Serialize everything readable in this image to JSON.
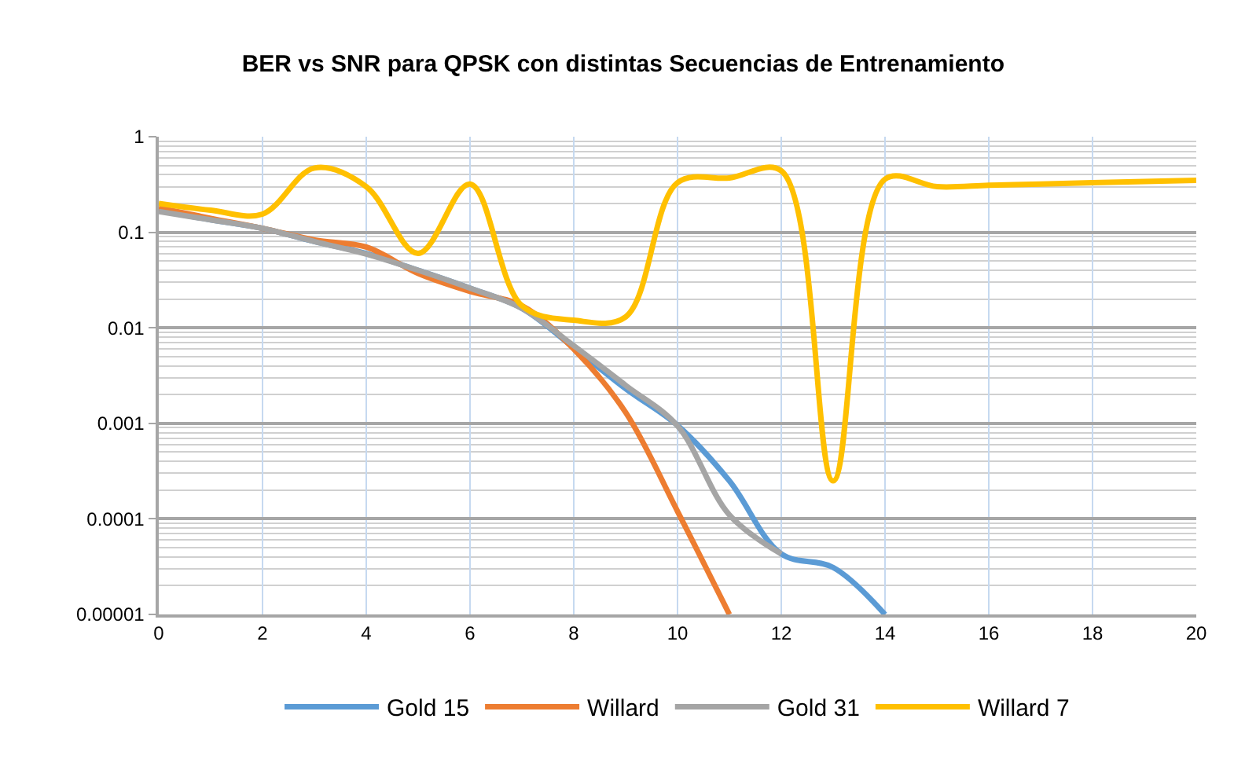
{
  "chart_data": {
    "type": "line",
    "title": "BER vs SNR para QPSK con distintas Secuencias de Entrenamiento",
    "x": [
      0,
      1,
      2,
      3,
      4,
      5,
      6,
      7,
      8,
      9,
      10,
      11,
      12,
      13,
      14,
      15,
      16,
      17,
      18,
      19,
      20
    ],
    "series": [
      {
        "name": "Gold 15",
        "color": "#5b9bd5",
        "values": [
          0.17,
          0.135,
          0.11,
          0.08,
          0.06,
          0.04,
          0.026,
          0.016,
          0.0062,
          0.0023,
          0.00095,
          0.00025,
          4.3e-05,
          3.1e-05,
          1e-05,
          null,
          null,
          null,
          null,
          null,
          null
        ]
      },
      {
        "name": "Willard",
        "color": "#ed7d31",
        "values": [
          0.18,
          0.14,
          0.11,
          0.083,
          0.07,
          0.037,
          0.024,
          0.017,
          0.006,
          0.0013,
          0.00012,
          1e-05,
          null,
          null,
          null,
          null,
          null,
          null,
          null,
          null,
          null
        ]
      },
      {
        "name": "Gold 31",
        "color": "#a5a5a5",
        "values": [
          0.165,
          0.135,
          0.11,
          0.08,
          0.059,
          0.04,
          0.026,
          0.016,
          0.0065,
          0.0025,
          0.00094,
          0.00011,
          4.3e-05,
          null,
          null,
          null,
          null,
          null,
          null,
          null,
          null
        ]
      },
      {
        "name": "Willard 7",
        "color": "#ffc000",
        "values": [
          0.2,
          0.17,
          0.155,
          0.47,
          0.3,
          0.06,
          0.32,
          0.017,
          0.012,
          0.013,
          0.33,
          0.37,
          0.44,
          0.00025,
          0.36,
          0.3,
          0.31,
          0.32,
          0.33,
          0.34,
          0.35
        ]
      }
    ],
    "xlim": [
      0,
      20
    ],
    "xticks": [
      0,
      2,
      4,
      6,
      8,
      10,
      12,
      14,
      16,
      18,
      20
    ],
    "ylim": [
      1e-05,
      1
    ],
    "yticks": [
      {
        "value": 1e-05,
        "label": "0.00001"
      },
      0.0001,
      0.001,
      0.01,
      0.1,
      1
    ],
    "log": true,
    "grid": true,
    "legend": "bottom"
  }
}
